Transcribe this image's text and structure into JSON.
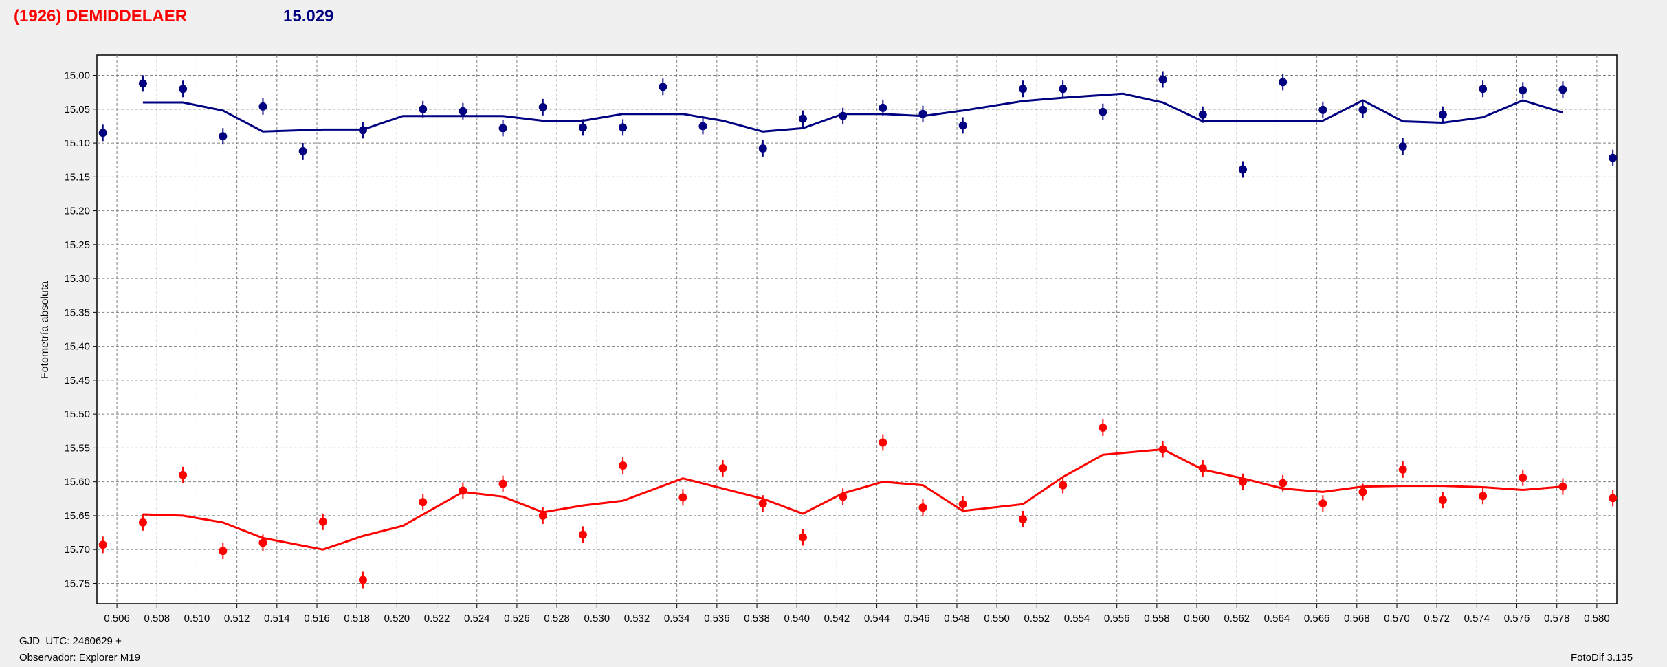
{
  "header": {
    "object_name": "(1926) DEMIDDELAER",
    "mean_mag": "15.029"
  },
  "footer": {
    "gjd_label": "GJD_UTC: 2460629 +",
    "observer_label": "Observador: Explorer M19",
    "software_label": "FotoDif 3.135"
  },
  "colors": {
    "series_blue": "#000080",
    "series_red": "#ff0000",
    "grid": "#808080",
    "background": "#f0f0f0"
  },
  "chart_data": {
    "type": "scatter",
    "ylabel": "Fotometría absoluta",
    "xlabel": "",
    "xlim": [
      0.505,
      0.581
    ],
    "ylim": [
      15.78,
      14.97
    ],
    "y_inverted": true,
    "x_ticks": [
      "0.506",
      "0.508",
      "0.510",
      "0.512",
      "0.514",
      "0.516",
      "0.518",
      "0.520",
      "0.522",
      "0.524",
      "0.526",
      "0.528",
      "0.530",
      "0.532",
      "0.534",
      "0.536",
      "0.538",
      "0.540",
      "0.542",
      "0.544",
      "0.546",
      "0.548",
      "0.550",
      "0.552",
      "0.554",
      "0.556",
      "0.558",
      "0.560",
      "0.562",
      "0.564",
      "0.566",
      "0.568",
      "0.570",
      "0.572",
      "0.574",
      "0.576",
      "0.578",
      "0.580"
    ],
    "y_ticks": [
      "15.00",
      "15.05",
      "15.10",
      "15.15",
      "15.20",
      "15.25",
      "15.30",
      "15.35",
      "15.40",
      "15.45",
      "15.50",
      "15.55",
      "15.60",
      "15.65",
      "15.70",
      "15.75"
    ],
    "grid": true,
    "series": [
      {
        "color": "#000080",
        "x": [
          0.5053,
          0.5073,
          0.5093,
          0.5113,
          0.5133,
          0.5153,
          0.5183,
          0.5213,
          0.5233,
          0.5253,
          0.5273,
          0.5293,
          0.5313,
          0.5333,
          0.5353,
          0.5383,
          0.5403,
          0.5423,
          0.5443,
          0.5463,
          0.5483,
          0.5513,
          0.5533,
          0.5553,
          0.5583,
          0.5603,
          0.5623,
          0.5643,
          0.5663,
          0.5683,
          0.5703,
          0.5723,
          0.5743,
          0.5763,
          0.5783,
          0.5808
        ],
        "y": [
          15.085,
          15.012,
          15.02,
          15.09,
          15.046,
          15.112,
          15.081,
          15.05,
          15.053,
          15.078,
          15.047,
          15.077,
          15.077,
          15.017,
          15.075,
          15.108,
          15.064,
          15.06,
          15.048,
          15.057,
          15.074,
          15.02,
          15.02,
          15.054,
          15.006,
          15.058,
          15.139,
          15.01,
          15.051,
          15.051,
          15.105,
          15.058,
          15.02,
          15.022,
          15.021,
          15.122
        ],
        "fit_x": [
          0.5073,
          0.5093,
          0.5113,
          0.5133,
          0.5163,
          0.5183,
          0.5203,
          0.5233,
          0.5253,
          0.5273,
          0.5293,
          0.5313,
          0.5343,
          0.5363,
          0.5383,
          0.5403,
          0.5423,
          0.5443,
          0.5463,
          0.5483,
          0.5513,
          0.5533,
          0.5563,
          0.5583,
          0.5603,
          0.5623,
          0.5643,
          0.5663,
          0.5683,
          0.5703,
          0.5723,
          0.5743,
          0.5763,
          0.5783
        ],
        "fit_y": [
          15.04,
          15.04,
          15.052,
          15.083,
          15.08,
          15.08,
          15.06,
          15.06,
          15.06,
          15.067,
          15.067,
          15.057,
          15.057,
          15.067,
          15.083,
          15.078,
          15.057,
          15.057,
          15.06,
          15.052,
          15.038,
          15.033,
          15.027,
          15.04,
          15.068,
          15.068,
          15.068,
          15.067,
          15.037,
          15.068,
          15.07,
          15.062,
          15.037,
          15.055
        ]
      },
      {
        "color": "#ff0000",
        "x": [
          0.5053,
          0.5073,
          0.5093,
          0.5113,
          0.5133,
          0.5163,
          0.5183,
          0.5213,
          0.5233,
          0.5253,
          0.5273,
          0.5293,
          0.5313,
          0.5343,
          0.5363,
          0.5383,
          0.5403,
          0.5423,
          0.5443,
          0.5463,
          0.5483,
          0.5513,
          0.5533,
          0.5553,
          0.5583,
          0.5603,
          0.5623,
          0.5643,
          0.5663,
          0.5683,
          0.5703,
          0.5723,
          0.5743,
          0.5763,
          0.5783,
          0.5808
        ],
        "y": [
          15.693,
          15.66,
          15.59,
          15.702,
          15.69,
          15.659,
          15.745,
          15.63,
          15.613,
          15.603,
          15.65,
          15.678,
          15.576,
          15.623,
          15.58,
          15.632,
          15.682,
          15.622,
          15.542,
          15.638,
          15.633,
          15.655,
          15.605,
          15.52,
          15.552,
          15.58,
          15.6,
          15.602,
          15.632,
          15.615,
          15.582,
          15.627,
          15.621,
          15.594,
          15.607,
          15.624
        ],
        "fit_x": [
          0.5073,
          0.5093,
          0.5113,
          0.5133,
          0.5163,
          0.5183,
          0.5203,
          0.5233,
          0.5253,
          0.5273,
          0.5293,
          0.5313,
          0.5343,
          0.5383,
          0.5403,
          0.5423,
          0.5443,
          0.5463,
          0.5483,
          0.5513,
          0.5533,
          0.5553,
          0.5583,
          0.5603,
          0.5623,
          0.5643,
          0.5663,
          0.5683,
          0.5703,
          0.5723,
          0.5743,
          0.5763,
          0.5783
        ],
        "fit_y": [
          15.648,
          15.65,
          15.66,
          15.683,
          15.7,
          15.68,
          15.665,
          15.615,
          15.622,
          15.645,
          15.635,
          15.628,
          15.595,
          15.625,
          15.647,
          15.617,
          15.6,
          15.605,
          15.643,
          15.633,
          15.593,
          15.56,
          15.552,
          15.582,
          15.595,
          15.61,
          15.615,
          15.607,
          15.606,
          15.606,
          15.608,
          15.612,
          15.607
        ]
      }
    ]
  }
}
